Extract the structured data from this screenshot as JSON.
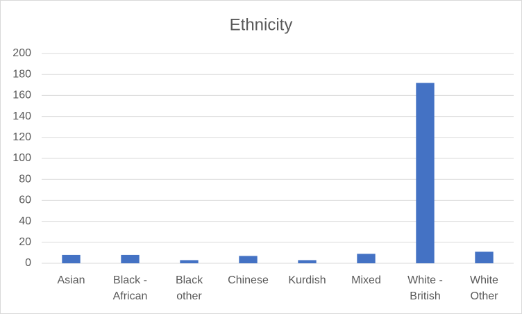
{
  "chart_data": {
    "type": "bar",
    "title": "Ethnicity",
    "categories": [
      "Asian",
      "Black - African",
      "Black other",
      "Chinese",
      "Kurdish",
      "Mixed",
      "White - British",
      "White Other"
    ],
    "values": [
      8,
      8,
      3,
      7,
      3,
      9,
      172,
      11
    ],
    "color": "#4472c4",
    "ylim": [
      0,
      200
    ],
    "yticks": [
      0,
      20,
      40,
      60,
      80,
      100,
      120,
      140,
      160,
      180,
      200
    ],
    "grid": true
  }
}
